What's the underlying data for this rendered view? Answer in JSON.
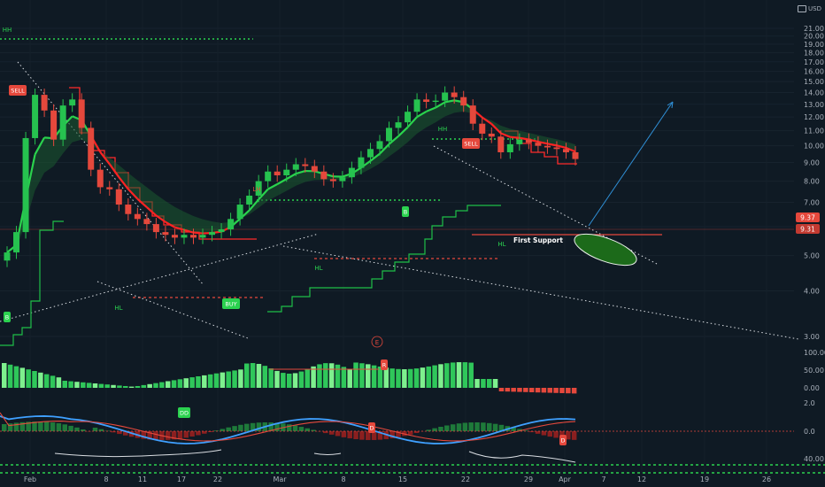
{
  "header": {
    "currency": "USD"
  },
  "chart_data": {
    "type": "candlestick",
    "price_axis": {
      "ticks": [
        "21.00",
        "20.00",
        "19.00",
        "18.00",
        "17.00",
        "16.00",
        "15.00",
        "14.00",
        "13.00",
        "12.00",
        "11.00",
        "10.00",
        "9.00",
        "8.00",
        "7.00",
        "6.00",
        "5.00",
        "4.00",
        "3.00"
      ],
      "scale": "log",
      "price_marks": [
        "9.37",
        "9.31"
      ]
    },
    "x_axis": {
      "ticks": [
        "Feb",
        "8",
        "11",
        "17",
        "22",
        "Mar",
        "8",
        "15",
        "22",
        "29",
        "Apr",
        "7",
        "12",
        "19",
        "26"
      ]
    },
    "indicator_axes": {
      "volume_osc": [
        "100.00",
        "50.00",
        "0.00"
      ],
      "macd": [
        "2.0",
        "0.0"
      ],
      "rsi": [
        "40.00"
      ]
    },
    "annotations": {
      "swing_labels": [
        "HH",
        "HL",
        "LH",
        "HL",
        "HH",
        "HL"
      ],
      "signals": [
        "SELL",
        "BUY",
        "B",
        "SELL",
        "B"
      ],
      "indicator_marks": [
        "E",
        "R",
        "DD",
        "D",
        "D"
      ],
      "first_support": "First Support"
    },
    "series": [
      {
        "values": [
          5.1,
          5.8,
          10.5,
          13.8,
          12.5,
          10.4,
          12.9,
          13.4,
          11.2,
          8.6,
          7.7,
          7.6,
          6.9,
          6.5,
          6.3,
          6.1,
          5.8,
          5.7,
          5.6,
          5.7,
          5.6,
          5.7,
          5.8,
          5.9,
          6.3,
          6.9,
          7.3,
          8.0,
          8.5,
          8.3,
          8.6,
          8.9,
          8.8,
          8.5,
          8.1,
          8.0,
          8.2,
          8.7,
          9.3,
          9.8,
          10.3,
          11.2,
          11.6,
          12.4,
          13.4,
          13.2,
          13.3,
          14.0,
          13.6,
          12.9,
          11.5,
          10.8,
          10.6,
          9.6,
          10.1,
          10.4,
          10.2,
          10.0,
          9.9,
          9.8,
          9.6,
          9.2
        ]
      }
    ]
  },
  "colors": {
    "background": "#0f1a24",
    "bull": "#26c24f",
    "bear": "#e5483c",
    "trend_up": "#1fbf48",
    "trend_down": "#ff2a2a",
    "projection": "#2f8fd6"
  }
}
